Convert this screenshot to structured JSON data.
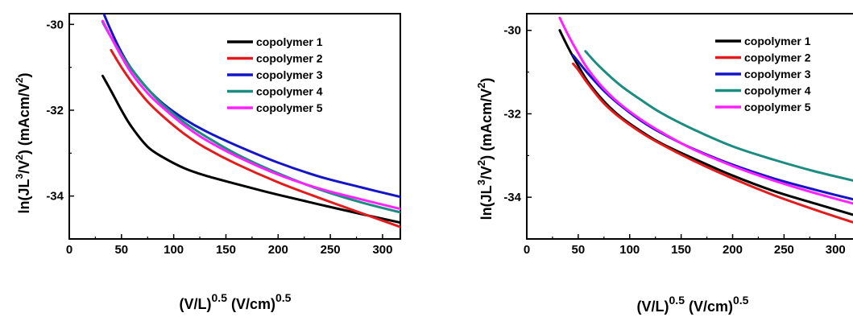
{
  "chart_data": [
    {
      "type": "line",
      "panel": "left",
      "xlabel": {
        "base": "(V/L)",
        "exp1": "0.5",
        "mid": " (V/cm)",
        "exp2": "0.5"
      },
      "ylabel": {
        "p1": "ln(JL",
        "p1sup": "3",
        "p2": "/V",
        "p2sup": "2",
        "p3": ") (mAcm/V",
        "p3sup": "2",
        "p4": ")"
      },
      "xlim": [
        0,
        317
      ],
      "ylim": [
        -35.0,
        -29.75
      ],
      "xticks": [
        0,
        50,
        100,
        150,
        200,
        250,
        300
      ],
      "yticks": [
        -30,
        -32,
        -34
      ],
      "legend": {
        "placement": "top-right"
      },
      "series": [
        {
          "name": "copolymer 1",
          "color": "#000000",
          "x": [
            32,
            40,
            50,
            60,
            75,
            90,
            110,
            130,
            160,
            200,
            240,
            280,
            317
          ],
          "y": [
            -31.2,
            -31.55,
            -32.0,
            -32.4,
            -32.85,
            -33.1,
            -33.35,
            -33.52,
            -33.72,
            -33.97,
            -34.2,
            -34.42,
            -34.62
          ]
        },
        {
          "name": "copolymer 2",
          "color": "#e41a1c",
          "x": [
            40,
            50,
            60,
            75,
            90,
            110,
            130,
            160,
            200,
            240,
            280,
            317
          ],
          "y": [
            -30.6,
            -31.0,
            -31.35,
            -31.8,
            -32.15,
            -32.55,
            -32.87,
            -33.25,
            -33.68,
            -34.05,
            -34.4,
            -34.72
          ]
        },
        {
          "name": "copolymer 3",
          "color": "#1414c8",
          "x": [
            33,
            40,
            50,
            60,
            75,
            90,
            110,
            130,
            160,
            200,
            240,
            280,
            317
          ],
          "y": [
            -29.75,
            -30.15,
            -30.65,
            -31.05,
            -31.5,
            -31.85,
            -32.2,
            -32.48,
            -32.82,
            -33.22,
            -33.55,
            -33.8,
            -34.02
          ]
        },
        {
          "name": "copolymer 4",
          "color": "#1a8c80",
          "x": [
            32,
            40,
            50,
            60,
            75,
            90,
            110,
            130,
            160,
            200,
            240,
            280,
            317
          ],
          "y": [
            -29.95,
            -30.3,
            -30.7,
            -31.05,
            -31.5,
            -31.88,
            -32.28,
            -32.6,
            -33.02,
            -33.47,
            -33.85,
            -34.15,
            -34.38
          ]
        },
        {
          "name": "copolymer 5",
          "color": "#ff22ff",
          "x": [
            32,
            40,
            50,
            60,
            75,
            90,
            110,
            130,
            160,
            200,
            240,
            280,
            317
          ],
          "y": [
            -29.92,
            -30.3,
            -30.75,
            -31.15,
            -31.6,
            -31.95,
            -32.35,
            -32.68,
            -33.07,
            -33.5,
            -33.83,
            -34.08,
            -34.3
          ]
        }
      ]
    },
    {
      "type": "line",
      "panel": "right",
      "xlabel": {
        "base": "(V/L)",
        "exp1": "0.5",
        "mid": " (V/cm)",
        "exp2": "0.5"
      },
      "ylabel": {
        "p1": "ln(JL",
        "p1sup": "3",
        "p2": "/V",
        "p2sup": "2",
        "p3": ") (mAcm/V",
        "p3sup": "2",
        "p4": ")"
      },
      "xlim": [
        0,
        317
      ],
      "ylim": [
        -35.0,
        -29.6
      ],
      "xticks": [
        0,
        50,
        100,
        150,
        200,
        250,
        300
      ],
      "yticks": [
        -30,
        -32,
        -34
      ],
      "legend": {
        "placement": "top-right"
      },
      "series": [
        {
          "name": "copolymer 1",
          "color": "#000000",
          "x": [
            32,
            40,
            50,
            60,
            75,
            90,
            110,
            130,
            160,
            200,
            240,
            280,
            317
          ],
          "y": [
            -30.0,
            -30.4,
            -30.85,
            -31.25,
            -31.7,
            -32.05,
            -32.4,
            -32.7,
            -33.05,
            -33.48,
            -33.85,
            -34.15,
            -34.42
          ]
        },
        {
          "name": "copolymer 2",
          "color": "#e41a1c",
          "x": [
            45,
            50,
            60,
            75,
            90,
            110,
            130,
            160,
            200,
            240,
            280,
            317
          ],
          "y": [
            -30.8,
            -30.95,
            -31.3,
            -31.75,
            -32.08,
            -32.43,
            -32.72,
            -33.1,
            -33.55,
            -33.95,
            -34.3,
            -34.6
          ]
        },
        {
          "name": "copolymer 3",
          "color": "#1414c8",
          "x": [
            45,
            50,
            60,
            75,
            90,
            110,
            130,
            160,
            200,
            240,
            280,
            317
          ],
          "y": [
            -30.6,
            -30.75,
            -31.05,
            -31.45,
            -31.78,
            -32.15,
            -32.45,
            -32.82,
            -33.22,
            -33.55,
            -33.82,
            -34.05
          ]
        },
        {
          "name": "copolymer 4",
          "color": "#1a8c80",
          "x": [
            57,
            70,
            90,
            110,
            130,
            160,
            200,
            240,
            280,
            317
          ],
          "y": [
            -30.5,
            -30.85,
            -31.3,
            -31.65,
            -31.97,
            -32.35,
            -32.78,
            -33.1,
            -33.38,
            -33.6
          ]
        },
        {
          "name": "copolymer 5",
          "color": "#ff22ff",
          "x": [
            32,
            40,
            50,
            60,
            75,
            90,
            110,
            130,
            160,
            200,
            240,
            280,
            317
          ],
          "y": [
            -29.7,
            -30.1,
            -30.55,
            -30.95,
            -31.4,
            -31.75,
            -32.12,
            -32.43,
            -32.83,
            -33.25,
            -33.6,
            -33.9,
            -34.15
          ]
        }
      ]
    }
  ]
}
